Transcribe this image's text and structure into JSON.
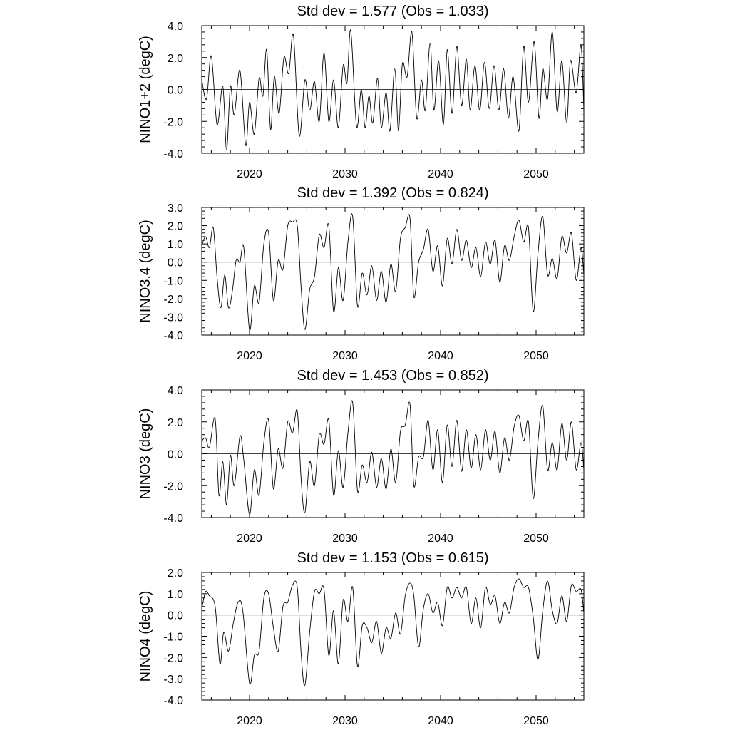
{
  "chart_data": [
    {
      "type": "line",
      "title": "Std dev = 1.577 (Obs = 1.033)",
      "ylabel": "NINO1+2 (degC)",
      "xlabel": "",
      "xlim": [
        2015,
        2055
      ],
      "ylim": [
        -4.0,
        4.0
      ],
      "xticks": [
        2020,
        2030,
        2040,
        2050
      ],
      "xtick_labels": [
        "2020",
        "2030",
        "2040",
        "2050"
      ],
      "yticks": [
        -4.0,
        -2.0,
        0.0,
        2.0,
        4.0
      ],
      "ytick_labels": [
        "-4.0",
        "-2.0",
        "0.0",
        "2.0",
        "4.0"
      ],
      "reference_line": 0.0,
      "series": [
        {
          "name": "NINO1+2",
          "x": [
            2015.0,
            2015.5,
            2016.0,
            2016.6,
            2017.2,
            2017.6,
            2018.0,
            2018.4,
            2019.0,
            2019.6,
            2020.0,
            2020.5,
            2021.0,
            2021.4,
            2021.8,
            2022.2,
            2022.6,
            2023.1,
            2023.6,
            2024.1,
            2024.6,
            2025.2,
            2025.8,
            2026.3,
            2026.8,
            2027.3,
            2027.8,
            2028.3,
            2028.8,
            2029.3,
            2029.8,
            2030.2,
            2030.6,
            2031.2,
            2031.7,
            2032.1,
            2032.5,
            2032.9,
            2033.4,
            2033.8,
            2034.3,
            2034.7,
            2035.2,
            2035.6,
            2036.0,
            2036.5,
            2037.0,
            2037.5,
            2038.0,
            2038.4,
            2038.9,
            2039.3,
            2039.8,
            2040.3,
            2040.7,
            2041.2,
            2041.7,
            2042.2,
            2042.7,
            2043.1,
            2043.6,
            2044.1,
            2044.6,
            2045.1,
            2045.6,
            2046.1,
            2046.6,
            2047.1,
            2047.6,
            2048.2,
            2048.7,
            2049.2,
            2049.8,
            2050.3,
            2050.7,
            2051.2,
            2051.7,
            2052.2,
            2052.7,
            2053.2,
            2053.6,
            2054.2,
            2054.7,
            2055.0
          ],
          "values": [
            0.6,
            -0.6,
            2.1,
            -2.2,
            0.2,
            -3.8,
            0.2,
            -1.6,
            1.2,
            -3.5,
            -0.8,
            -2.8,
            0.7,
            -0.4,
            2.5,
            -2.5,
            0.8,
            -1.5,
            2.0,
            1.0,
            3.4,
            -2.9,
            0.6,
            -1.3,
            0.5,
            -2.0,
            2.3,
            -2.0,
            0.6,
            -2.4,
            1.5,
            0.4,
            3.7,
            -2.3,
            0.0,
            -2.4,
            -0.4,
            -2.1,
            0.7,
            -2.4,
            -0.2,
            -2.6,
            1.3,
            -2.6,
            1.6,
            0.8,
            3.6,
            -1.8,
            0.6,
            -1.3,
            2.9,
            -1.3,
            1.8,
            -2.2,
            2.5,
            -1.5,
            2.7,
            -1.0,
            1.9,
            -1.3,
            1.5,
            -1.3,
            1.7,
            -1.2,
            1.5,
            -1.3,
            1.3,
            -1.8,
            0.8,
            -2.6,
            2.7,
            -0.8,
            3.0,
            -1.8,
            1.3,
            -0.6,
            3.6,
            -1.4,
            1.8,
            -2.1,
            1.8,
            -0.2,
            2.8,
            -1.3
          ]
        }
      ]
    },
    {
      "type": "line",
      "title": "Std dev = 1.392 (Obs = 0.824)",
      "ylabel": "NINO3.4 (degC)",
      "xlabel": "",
      "xlim": [
        2015,
        2055
      ],
      "ylim": [
        -4.0,
        3.0
      ],
      "xticks": [
        2020,
        2030,
        2040,
        2050
      ],
      "xtick_labels": [
        "2020",
        "2030",
        "2040",
        "2050"
      ],
      "yticks": [
        -4.0,
        -3.0,
        -2.0,
        -1.0,
        0.0,
        1.0,
        2.0,
        3.0
      ],
      "ytick_labels": [
        "-4.0",
        "-3.0",
        "-2.0",
        "-1.0",
        "0.0",
        "1.0",
        "2.0",
        "3.0"
      ],
      "reference_line": 0.0,
      "series": [
        {
          "name": "NINO3.4",
          "x": [
            2015.0,
            2015.4,
            2015.8,
            2016.2,
            2016.6,
            2017.0,
            2017.4,
            2017.8,
            2018.2,
            2018.6,
            2019.0,
            2019.4,
            2020.0,
            2020.5,
            2021.0,
            2021.5,
            2022.0,
            2022.5,
            2023.0,
            2023.5,
            2024.0,
            2024.5,
            2025.0,
            2025.4,
            2025.8,
            2026.3,
            2026.8,
            2027.3,
            2027.8,
            2028.3,
            2028.8,
            2029.3,
            2029.8,
            2030.3,
            2030.8,
            2031.3,
            2031.8,
            2032.3,
            2032.8,
            2033.3,
            2033.8,
            2034.3,
            2034.8,
            2035.3,
            2035.8,
            2036.3,
            2036.8,
            2037.2,
            2037.7,
            2038.2,
            2038.7,
            2039.2,
            2039.7,
            2040.2,
            2040.7,
            2041.2,
            2041.7,
            2042.2,
            2042.7,
            2043.2,
            2043.7,
            2044.2,
            2044.7,
            2045.2,
            2045.7,
            2046.2,
            2046.7,
            2047.2,
            2047.7,
            2048.2,
            2048.7,
            2049.2,
            2049.7,
            2050.2,
            2050.7,
            2051.2,
            2051.7,
            2052.2,
            2052.7,
            2053.2,
            2053.7,
            2054.2,
            2054.7,
            2055.0
          ],
          "values": [
            0.9,
            1.4,
            0.8,
            1.9,
            -0.8,
            -2.5,
            -0.7,
            -2.5,
            -1.6,
            0.1,
            0.0,
            0.8,
            -3.7,
            -1.3,
            -2.2,
            1.0,
            1.6,
            -2.1,
            0.1,
            -0.4,
            2.0,
            2.2,
            2.0,
            -1.4,
            -3.7,
            -1.5,
            -0.8,
            1.5,
            0.8,
            2.0,
            -2.7,
            -0.3,
            -2.1,
            1.1,
            2.5,
            -2.4,
            -0.6,
            -1.8,
            -0.2,
            -2.1,
            -0.5,
            -2.2,
            -0.1,
            -1.6,
            1.3,
            1.9,
            2.4,
            -1.9,
            0.0,
            0.7,
            1.8,
            -0.5,
            0.9,
            -1.3,
            1.3,
            -0.1,
            1.8,
            0.1,
            1.2,
            -0.3,
            0.8,
            -0.8,
            1.1,
            -0.1,
            1.2,
            -1.1,
            0.9,
            0.1,
            1.4,
            2.3,
            1.1,
            1.9,
            -2.7,
            0.5,
            2.5,
            -0.7,
            0.2,
            -0.9,
            1.4,
            0.5,
            1.6,
            -1.0,
            0.8,
            -0.7
          ]
        }
      ]
    },
    {
      "type": "line",
      "title": "Std dev = 1.453 (Obs = 0.852)",
      "ylabel": "NINO3 (degC)",
      "xlabel": "",
      "xlim": [
        2015,
        2055
      ],
      "ylim": [
        -4.0,
        4.0
      ],
      "xticks": [
        2020,
        2030,
        2040,
        2050
      ],
      "xtick_labels": [
        "2020",
        "2030",
        "2040",
        "2050"
      ],
      "yticks": [
        -4.0,
        -2.0,
        0.0,
        2.0,
        4.0
      ],
      "ytick_labels": [
        "-4.0",
        "-2.0",
        "0.0",
        "2.0",
        "4.0"
      ],
      "reference_line": 0.0,
      "series": [
        {
          "name": "NINO3",
          "x": [
            2015.0,
            2015.4,
            2015.8,
            2016.4,
            2016.8,
            2017.2,
            2017.6,
            2018.0,
            2018.4,
            2019.0,
            2019.4,
            2020.0,
            2020.5,
            2021.0,
            2021.5,
            2022.0,
            2022.5,
            2023.0,
            2023.5,
            2024.0,
            2024.5,
            2025.0,
            2025.4,
            2025.8,
            2026.3,
            2026.8,
            2027.3,
            2027.8,
            2028.3,
            2028.8,
            2029.3,
            2029.8,
            2030.3,
            2030.8,
            2031.3,
            2031.8,
            2032.3,
            2032.8,
            2033.3,
            2033.8,
            2034.3,
            2034.8,
            2035.3,
            2035.8,
            2036.3,
            2036.8,
            2037.2,
            2037.7,
            2038.2,
            2038.7,
            2039.2,
            2039.7,
            2040.2,
            2040.7,
            2041.2,
            2041.7,
            2042.2,
            2042.7,
            2043.2,
            2043.7,
            2044.2,
            2044.7,
            2045.2,
            2045.7,
            2046.2,
            2046.7,
            2047.2,
            2047.7,
            2048.2,
            2048.7,
            2049.2,
            2049.7,
            2050.2,
            2050.7,
            2051.2,
            2051.7,
            2052.2,
            2052.7,
            2053.2,
            2053.7,
            2054.2,
            2054.7,
            2055.0
          ],
          "values": [
            0.8,
            1.0,
            0.4,
            2.2,
            -2.6,
            -0.5,
            -3.2,
            -0.1,
            -2.0,
            1.1,
            -0.4,
            -3.8,
            -1.0,
            -2.6,
            0.7,
            2.1,
            -2.2,
            0.3,
            -0.9,
            2.0,
            1.3,
            2.7,
            -1.6,
            -3.7,
            -0.5,
            -2.0,
            1.2,
            0.6,
            2.1,
            -2.6,
            0.2,
            -2.1,
            1.3,
            3.2,
            -2.3,
            -0.7,
            -1.8,
            0.1,
            -2.1,
            -0.3,
            -2.2,
            0.3,
            -1.8,
            1.4,
            1.8,
            3.1,
            -2.0,
            -0.2,
            -0.2,
            2.1,
            -1.0,
            1.5,
            -1.8,
            1.8,
            -0.8,
            2.1,
            -1.1,
            1.5,
            -0.9,
            1.2,
            -1.0,
            1.5,
            -0.4,
            1.4,
            -1.2,
            1.0,
            -0.4,
            1.7,
            2.4,
            0.8,
            2.0,
            -2.8,
            0.8,
            3.0,
            -1.0,
            0.7,
            -1.0,
            1.9,
            -0.4,
            2.0,
            -1.0,
            0.7,
            -1.0
          ]
        }
      ]
    },
    {
      "type": "line",
      "title": "Std dev = 1.153 (Obs = 0.615)",
      "ylabel": "NINO4 (degC)",
      "xlabel": "",
      "xlim": [
        2015,
        2055
      ],
      "ylim": [
        -4.0,
        2.0
      ],
      "xticks": [
        2020,
        2030,
        2040,
        2050
      ],
      "xtick_labels": [
        "2020",
        "2030",
        "2040",
        "2050"
      ],
      "yticks": [
        -4.0,
        -3.0,
        -2.0,
        -1.0,
        0.0,
        1.0,
        2.0
      ],
      "ytick_labels": [
        "-4.0",
        "-3.0",
        "-2.0",
        "-1.0",
        "0.0",
        "1.0",
        "2.0"
      ],
      "reference_line": 0.0,
      "series": [
        {
          "name": "NINO4",
          "x": [
            2015.0,
            2015.4,
            2015.8,
            2016.4,
            2016.9,
            2017.3,
            2017.8,
            2018.3,
            2018.8,
            2019.3,
            2020.0,
            2020.5,
            2021.0,
            2021.5,
            2022.0,
            2022.5,
            2023.0,
            2023.5,
            2024.0,
            2024.5,
            2025.0,
            2025.4,
            2025.8,
            2026.3,
            2026.8,
            2027.3,
            2027.8,
            2028.3,
            2028.8,
            2029.3,
            2029.8,
            2030.3,
            2030.8,
            2031.3,
            2031.8,
            2032.3,
            2032.8,
            2033.3,
            2033.8,
            2034.3,
            2034.8,
            2035.3,
            2035.8,
            2036.3,
            2036.8,
            2037.2,
            2037.7,
            2038.2,
            2038.7,
            2039.2,
            2039.7,
            2040.2,
            2040.7,
            2041.2,
            2041.7,
            2042.2,
            2042.7,
            2043.2,
            2043.7,
            2044.2,
            2044.7,
            2045.2,
            2045.7,
            2046.2,
            2046.7,
            2047.2,
            2047.7,
            2048.2,
            2048.7,
            2049.2,
            2049.7,
            2050.2,
            2050.7,
            2051.2,
            2051.7,
            2052.2,
            2052.7,
            2053.2,
            2053.7,
            2054.2,
            2054.7,
            2055.0
          ],
          "values": [
            0.3,
            1.1,
            0.9,
            0.4,
            -2.3,
            -0.8,
            -1.7,
            -0.4,
            0.6,
            0.2,
            -3.2,
            -1.9,
            -1.7,
            0.8,
            1.0,
            -0.6,
            -1.7,
            0.4,
            0.6,
            1.4,
            1.3,
            -1.8,
            -3.3,
            -0.8,
            1.1,
            1.0,
            1.2,
            -1.9,
            0.2,
            -2.3,
            0.7,
            -0.3,
            1.3,
            -2.4,
            -0.5,
            -0.6,
            -1.3,
            -0.3,
            -1.8,
            -0.6,
            -1.1,
            0.1,
            -0.9,
            0.9,
            1.5,
            0.9,
            -1.5,
            0.3,
            1.0,
            0.1,
            0.6,
            -0.5,
            1.3,
            0.8,
            1.3,
            0.8,
            1.3,
            -0.4,
            0.8,
            -0.6,
            1.3,
            0.5,
            0.9,
            -0.4,
            0.6,
            0.1,
            1.3,
            1.7,
            1.3,
            1.3,
            -0.1,
            -2.1,
            0.2,
            1.6,
            0.2,
            -0.4,
            0.9,
            -0.3,
            1.4,
            1.1,
            1.2,
            0.1
          ]
        }
      ]
    }
  ]
}
